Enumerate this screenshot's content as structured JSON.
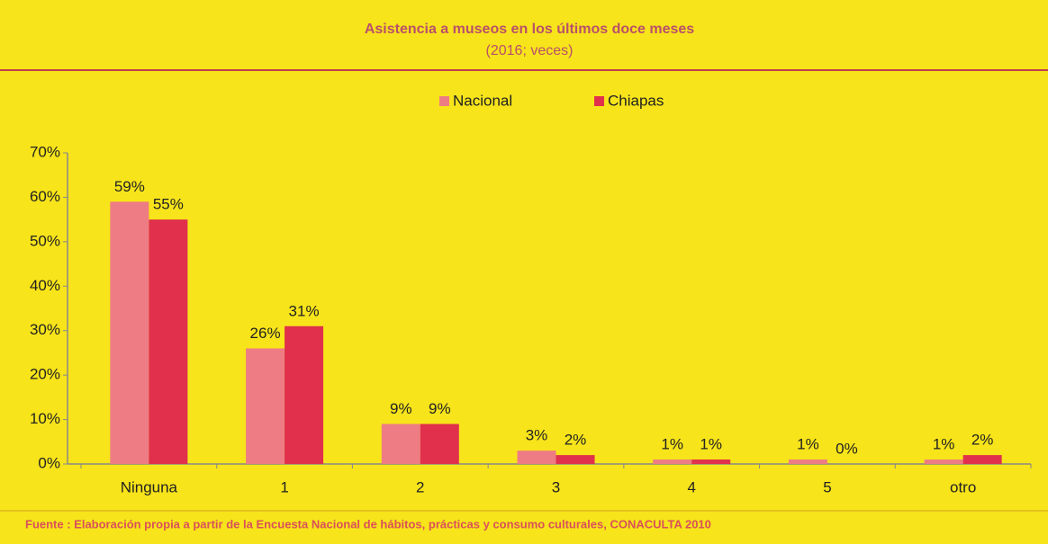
{
  "chart_data": {
    "type": "bar",
    "title": "Asistencia a museos en los últimos doce meses",
    "subtitle": "(2016; veces)",
    "source": "Fuente : Elaboración propia a partir de la Encuesta Nacional de hábitos, prácticas y consumo culturales, CONACULTA 2010",
    "categories": [
      "Ninguna",
      "1",
      "2",
      "3",
      "4",
      "5",
      "otro"
    ],
    "series": [
      {
        "name": "Nacional",
        "color": "#ee7c84",
        "values": [
          59,
          26,
          9,
          3,
          1,
          1,
          1
        ],
        "value_labels": [
          "59%",
          "26%",
          "9%",
          "3%",
          "1%",
          "1%",
          "1%"
        ]
      },
      {
        "name": "Chiapas",
        "color": "#e0304c",
        "values": [
          55,
          31,
          9,
          2,
          1,
          0,
          2
        ],
        "value_labels": [
          "55%",
          "31%",
          "9%",
          "2%",
          "1%",
          "0%",
          "2%"
        ]
      }
    ],
    "ylim": [
      0,
      70
    ],
    "yticks": [
      {
        "value": 0,
        "label": "0%"
      },
      {
        "value": 10,
        "label": "10%"
      },
      {
        "value": 20,
        "label": "20%"
      },
      {
        "value": 30,
        "label": "30%"
      },
      {
        "value": 40,
        "label": "40%"
      },
      {
        "value": 50,
        "label": "50%"
      },
      {
        "value": 60,
        "label": "60%"
      },
      {
        "value": 70,
        "label": "70%"
      }
    ],
    "legend": "top",
    "grid": false
  }
}
